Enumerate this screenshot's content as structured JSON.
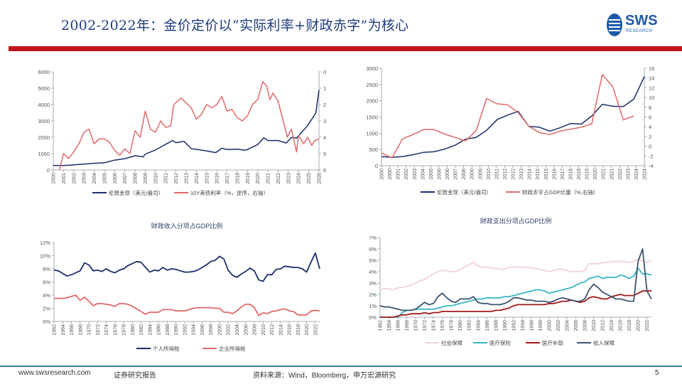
{
  "header": {
    "title": "2002-2022年：金价定价以“实际利率+财政赤字”为核心",
    "logo_text": "SWS",
    "logo_sub": "RESEARCH",
    "accent_color": "#c0161b",
    "title_color": "#1d3b7c"
  },
  "footer": {
    "website": "www.swsresearch.com",
    "report_type": "证券研究报告",
    "source": "资料来源：Wind，Bloomberg，申万宏源研究",
    "page_number": "5"
  },
  "chart_data": [
    {
      "id": "gold-vs-yield",
      "type": "line",
      "title": "",
      "y_left": {
        "min": 0,
        "max": 6000,
        "ticks": [
          "0",
          "1000",
          "2000",
          "3000",
          "4000",
          "5000",
          "6000"
        ]
      },
      "y_right": {
        "min": 0,
        "max": 6,
        "inverted": true,
        "ticks": [
          "0",
          "1",
          "2",
          "3",
          "4",
          "5",
          "6"
        ]
      },
      "x_ticks": [
        "2000",
        "2001",
        "2002",
        "2003",
        "2004",
        "2005",
        "2006",
        "2007",
        "2008",
        "2009",
        "2010",
        "2011",
        "2012",
        "2013",
        "2014",
        "2015",
        "2016",
        "2017",
        "2018",
        "2019",
        "2020",
        "2021",
        "2022",
        "2023",
        "2024",
        "2025",
        "2026"
      ],
      "x_range": [
        2000,
        2026
      ],
      "series": [
        {
          "name": "伦敦金现（美元/盎司）",
          "axis": "left",
          "color": "#1b2f6b",
          "x": [
            2000,
            2001,
            2002,
            2003,
            2004,
            2005,
            2006,
            2007,
            2008,
            2008.8,
            2009,
            2010,
            2011,
            2011.7,
            2012,
            2012.8,
            2013.5,
            2014,
            2015,
            2015.9,
            2016.5,
            2017,
            2018,
            2018.8,
            2019.5,
            2020,
            2020.6,
            2021,
            2022,
            2022.8,
            2023.3,
            2023.8,
            2024.3,
            2024.8,
            2025.3,
            2025.7,
            2026
          ],
          "y": [
            280,
            270,
            310,
            360,
            410,
            440,
            600,
            690,
            870,
            800,
            970,
            1220,
            1570,
            1800,
            1670,
            1750,
            1300,
            1260,
            1160,
            1060,
            1330,
            1250,
            1270,
            1200,
            1400,
            1550,
            1970,
            1800,
            1800,
            1650,
            1990,
            1950,
            2300,
            2650,
            3100,
            3500,
            4900
          ]
        },
        {
          "name": "10Y美债利率（%，逆序，右轴）",
          "axis": "right",
          "color": "#e06a6a",
          "x": [
            2000.6,
            2001,
            2001.5,
            2002,
            2002.5,
            2003,
            2003.5,
            2004,
            2004.5,
            2005,
            2005.5,
            2006,
            2006.5,
            2007,
            2007.5,
            2008,
            2008.5,
            2009,
            2009.5,
            2010,
            2010.5,
            2011,
            2011.5,
            2011.8,
            2012.5,
            2013,
            2013.5,
            2014,
            2014.5,
            2015,
            2015.5,
            2016,
            2016.5,
            2017,
            2017.5,
            2018,
            2018.5,
            2019,
            2019.5,
            2020,
            2020.5,
            2020.9,
            2021.2,
            2021.5,
            2022,
            2022.5,
            2022.9,
            2023.3,
            2023.8,
            2024,
            2024.5,
            2024.9,
            2025.3,
            2025.6,
            2026
          ],
          "y": [
            6.0,
            5.0,
            5.3,
            4.9,
            4.4,
            3.7,
            3.5,
            4.4,
            4.1,
            4.1,
            4.3,
            4.8,
            5.1,
            4.7,
            5.0,
            3.6,
            4.0,
            2.4,
            3.5,
            3.7,
            3.0,
            3.4,
            3.3,
            2.0,
            1.6,
            1.9,
            2.2,
            2.9,
            2.6,
            2.0,
            2.2,
            2.0,
            1.5,
            2.4,
            2.3,
            2.8,
            3.0,
            2.7,
            2.0,
            1.7,
            0.6,
            0.9,
            1.7,
            1.3,
            1.8,
            3.0,
            4.0,
            3.5,
            4.9,
            3.9,
            4.4,
            4.0,
            4.5,
            4.2,
            4.1
          ]
        }
      ],
      "legend_position": "bottom"
    },
    {
      "id": "gold-vs-deficit",
      "type": "line",
      "title": "",
      "y_left": {
        "min": 0,
        "max": 3000,
        "ticks": [
          "0",
          "500",
          "1000",
          "1500",
          "2000",
          "2500",
          "3000"
        ]
      },
      "y_right": {
        "min": -4,
        "max": 16,
        "ticks": [
          "-4",
          "-2",
          "0",
          "2",
          "4",
          "6",
          "8",
          "10",
          "12",
          "14",
          "16"
        ]
      },
      "x_ticks": [
        "2000",
        "2000",
        "2001",
        "2002",
        "2003",
        "2004",
        "2005",
        "2006",
        "2006",
        "2007",
        "2008",
        "2009",
        "2009",
        "2010",
        "2011",
        "2012",
        "2012",
        "2013",
        "2014",
        "2015",
        "2015",
        "2016",
        "2017",
        "2018",
        "2018",
        "2019",
        "2020",
        "2021",
        "2021",
        "2022",
        "2023",
        "2024",
        "2024"
      ],
      "series": [
        {
          "name": "伦敦金现（美元/盎司）",
          "axis": "left",
          "color": "#1b2f6b",
          "values": [
            280,
            260,
            280,
            340,
            410,
            430,
            510,
            630,
            820,
            870,
            1090,
            1420,
            1560,
            1670,
            1210,
            1190,
            1060,
            1170,
            1300,
            1280,
            1530,
            1890,
            1830,
            1820,
            2050,
            2750
          ]
        },
        {
          "name": "财政赤字占GDP比重（%,右轴）",
          "axis": "right",
          "color": "#e06a6a",
          "values": [
            -1.4,
            -2.4,
            1.5,
            2.4,
            3.4,
            3.4,
            2.5,
            1.8,
            1.1,
            3.2,
            9.8,
            8.7,
            8.5,
            6.9,
            4.1,
            2.8,
            2.4,
            3.1,
            3.5,
            3.9,
            4.6,
            14.7,
            12.2,
            5.4,
            6.2
          ]
        }
      ],
      "legend_position": "bottom"
    },
    {
      "id": "revenue-share",
      "type": "line",
      "title": "财政收入分项占GDP比例",
      "y_left": {
        "min": 0,
        "max": 12,
        "unit": "%",
        "ticks": [
          "0%",
          "2%",
          "4%",
          "6%",
          "8%",
          "10%",
          "12%"
        ]
      },
      "x_start": 1962,
      "x_ticks": [
        "1962",
        "1964",
        "1966",
        "1968",
        "1970",
        "1972",
        "1974",
        "1976",
        "1978",
        "1980",
        "1982",
        "1984",
        "1986",
        "1988",
        "1990",
        "1992",
        "1994",
        "1996",
        "1998",
        "2000",
        "2002",
        "2004",
        "2006",
        "2008",
        "2010",
        "2012",
        "2014",
        "2016",
        "2018",
        "2020",
        "2022"
      ],
      "series": [
        {
          "name": "个人所得税",
          "color": "#1b2f6b",
          "values": [
            7.8,
            7.7,
            7.3,
            6.9,
            7.1,
            7.4,
            7.7,
            8.9,
            8.6,
            7.7,
            7.8,
            7.6,
            8.0,
            7.6,
            7.4,
            7.8,
            8.0,
            8.5,
            8.8,
            9.1,
            9.0,
            8.2,
            7.5,
            7.8,
            7.7,
            8.2,
            7.8,
            8.0,
            7.9,
            7.7,
            7.5,
            7.5,
            7.6,
            7.8,
            8.2,
            8.6,
            9.1,
            9.3,
            9.9,
            9.5,
            7.8,
            7.0,
            6.7,
            7.2,
            7.6,
            8.1,
            7.7,
            6.3,
            6.1,
            7.1,
            7.1,
            7.9,
            8.0,
            8.4,
            8.3,
            8.2,
            8.2,
            8.0,
            7.5,
            9.0,
            10.4,
            8.0
          ]
        },
        {
          "name": "企业所得税",
          "color": "#e06a6a",
          "values": [
            3.5,
            3.5,
            3.5,
            3.6,
            3.8,
            4.0,
            3.2,
            3.7,
            3.1,
            2.4,
            2.7,
            2.7,
            2.6,
            2.5,
            2.3,
            2.7,
            2.7,
            2.6,
            2.3,
            1.9,
            1.5,
            1.1,
            1.4,
            1.4,
            1.4,
            1.8,
            1.8,
            1.8,
            1.6,
            1.6,
            1.6,
            1.8,
            2.0,
            2.1,
            2.1,
            2.1,
            2.1,
            2.0,
            2.0,
            1.4,
            1.4,
            1.2,
            1.6,
            2.2,
            2.6,
            2.6,
            2.1,
            0.9,
            1.3,
            1.2,
            1.5,
            1.6,
            1.8,
            1.9,
            1.6,
            1.5,
            1.0,
            1.0,
            1.0,
            1.6,
            1.7,
            1.6
          ]
        }
      ],
      "legend_position": "bottom"
    },
    {
      "id": "spending-share",
      "type": "line",
      "title": "财政支出分项占GDP比例",
      "y_left": {
        "min": 0,
        "max": 7,
        "unit": "%",
        "ticks": [
          "0%",
          "1%",
          "2%",
          "3%",
          "4%",
          "5%",
          "6%",
          "7%"
        ]
      },
      "x_start": 1962,
      "x_ticks": [
        "1962",
        "1964",
        "1966",
        "1968",
        "1970",
        "1972",
        "1974",
        "1976",
        "1978",
        "1980",
        "1982",
        "1984",
        "1986",
        "1988",
        "1990",
        "1992",
        "1994",
        "1996",
        "1998",
        "2000",
        "2002",
        "2004",
        "2006",
        "2008",
        "2010",
        "2012",
        "2014",
        "2016",
        "2018",
        "2020",
        "2022"
      ],
      "series": [
        {
          "name": "社会保障",
          "color": "#f2d3d3",
          "values": [
            2.4,
            2.5,
            2.5,
            2.4,
            2.6,
            2.6,
            2.7,
            2.8,
            3.0,
            3.2,
            3.3,
            3.6,
            3.8,
            4.0,
            4.1,
            4.1,
            4.0,
            4.0,
            4.2,
            4.4,
            4.6,
            4.8,
            4.5,
            4.4,
            4.4,
            4.3,
            4.3,
            4.2,
            4.2,
            4.4,
            4.4,
            4.4,
            4.4,
            4.4,
            4.3,
            4.3,
            4.2,
            4.1,
            4.0,
            4.1,
            4.2,
            4.2,
            4.1,
            4.0,
            4.0,
            4.0,
            4.1,
            4.7,
            4.7,
            4.7,
            4.8,
            4.8,
            4.9,
            4.9,
            4.9,
            4.9,
            4.8,
            4.9,
            5.1,
            4.9,
            4.8,
            5.0
          ]
        },
        {
          "name": "医疗保险",
          "color": "#38b6c8",
          "values": [
            0,
            0,
            0,
            0,
            0,
            0.4,
            0.6,
            0.6,
            0.7,
            0.7,
            0.7,
            0.7,
            0.7,
            0.8,
            0.9,
            1.0,
            1.0,
            1.1,
            1.2,
            1.3,
            1.4,
            1.5,
            1.6,
            1.6,
            1.7,
            1.7,
            1.7,
            1.7,
            1.8,
            1.8,
            1.9,
            2.0,
            2.1,
            2.2,
            2.3,
            2.4,
            2.4,
            2.3,
            2.1,
            2.2,
            2.3,
            2.4,
            2.5,
            2.6,
            2.8,
            3.0,
            3.1,
            3.4,
            3.5,
            3.6,
            3.4,
            3.5,
            3.5,
            3.5,
            3.7,
            3.6,
            3.4,
            3.6,
            4.3,
            3.8,
            3.8,
            3.7
          ]
        },
        {
          "name": "医疗补助",
          "color": "#a3181b",
          "values": [
            0,
            0,
            0,
            0,
            0.1,
            0.2,
            0.2,
            0.3,
            0.3,
            0.3,
            0.4,
            0.3,
            0.4,
            0.4,
            0.5,
            0.5,
            0.5,
            0.5,
            0.5,
            0.5,
            0.5,
            0.5,
            0.5,
            0.5,
            0.5,
            0.5,
            0.6,
            0.6,
            0.7,
            0.8,
            1.0,
            1.1,
            1.1,
            1.1,
            1.1,
            1.1,
            1.1,
            1.1,
            1.2,
            1.2,
            1.3,
            1.4,
            1.4,
            1.5,
            1.4,
            1.3,
            1.4,
            1.7,
            1.8,
            1.7,
            1.6,
            1.6,
            1.8,
            1.9,
            2.0,
            1.9,
            1.9,
            1.9,
            2.1,
            2.3,
            2.3,
            2.3
          ]
        },
        {
          "name": "收入保障",
          "color": "#3b5570",
          "values": [
            1.0,
            0.9,
            0.9,
            0.8,
            0.7,
            0.6,
            0.6,
            0.6,
            0.7,
            1.0,
            1.3,
            1.1,
            1.2,
            1.8,
            2.1,
            1.7,
            1.4,
            1.3,
            1.6,
            1.6,
            1.6,
            1.8,
            1.3,
            1.2,
            1.2,
            1.1,
            1.1,
            1.1,
            1.2,
            1.4,
            1.7,
            1.7,
            1.6,
            1.5,
            1.5,
            1.4,
            1.4,
            1.4,
            1.3,
            1.4,
            1.6,
            1.7,
            1.6,
            1.5,
            1.4,
            1.4,
            1.6,
            2.4,
            2.9,
            2.6,
            2.2,
            2.0,
            1.8,
            1.6,
            1.6,
            1.5,
            1.4,
            1.4,
            4.9,
            6.0,
            2.3,
            1.6
          ]
        }
      ],
      "legend_position": "bottom"
    }
  ]
}
